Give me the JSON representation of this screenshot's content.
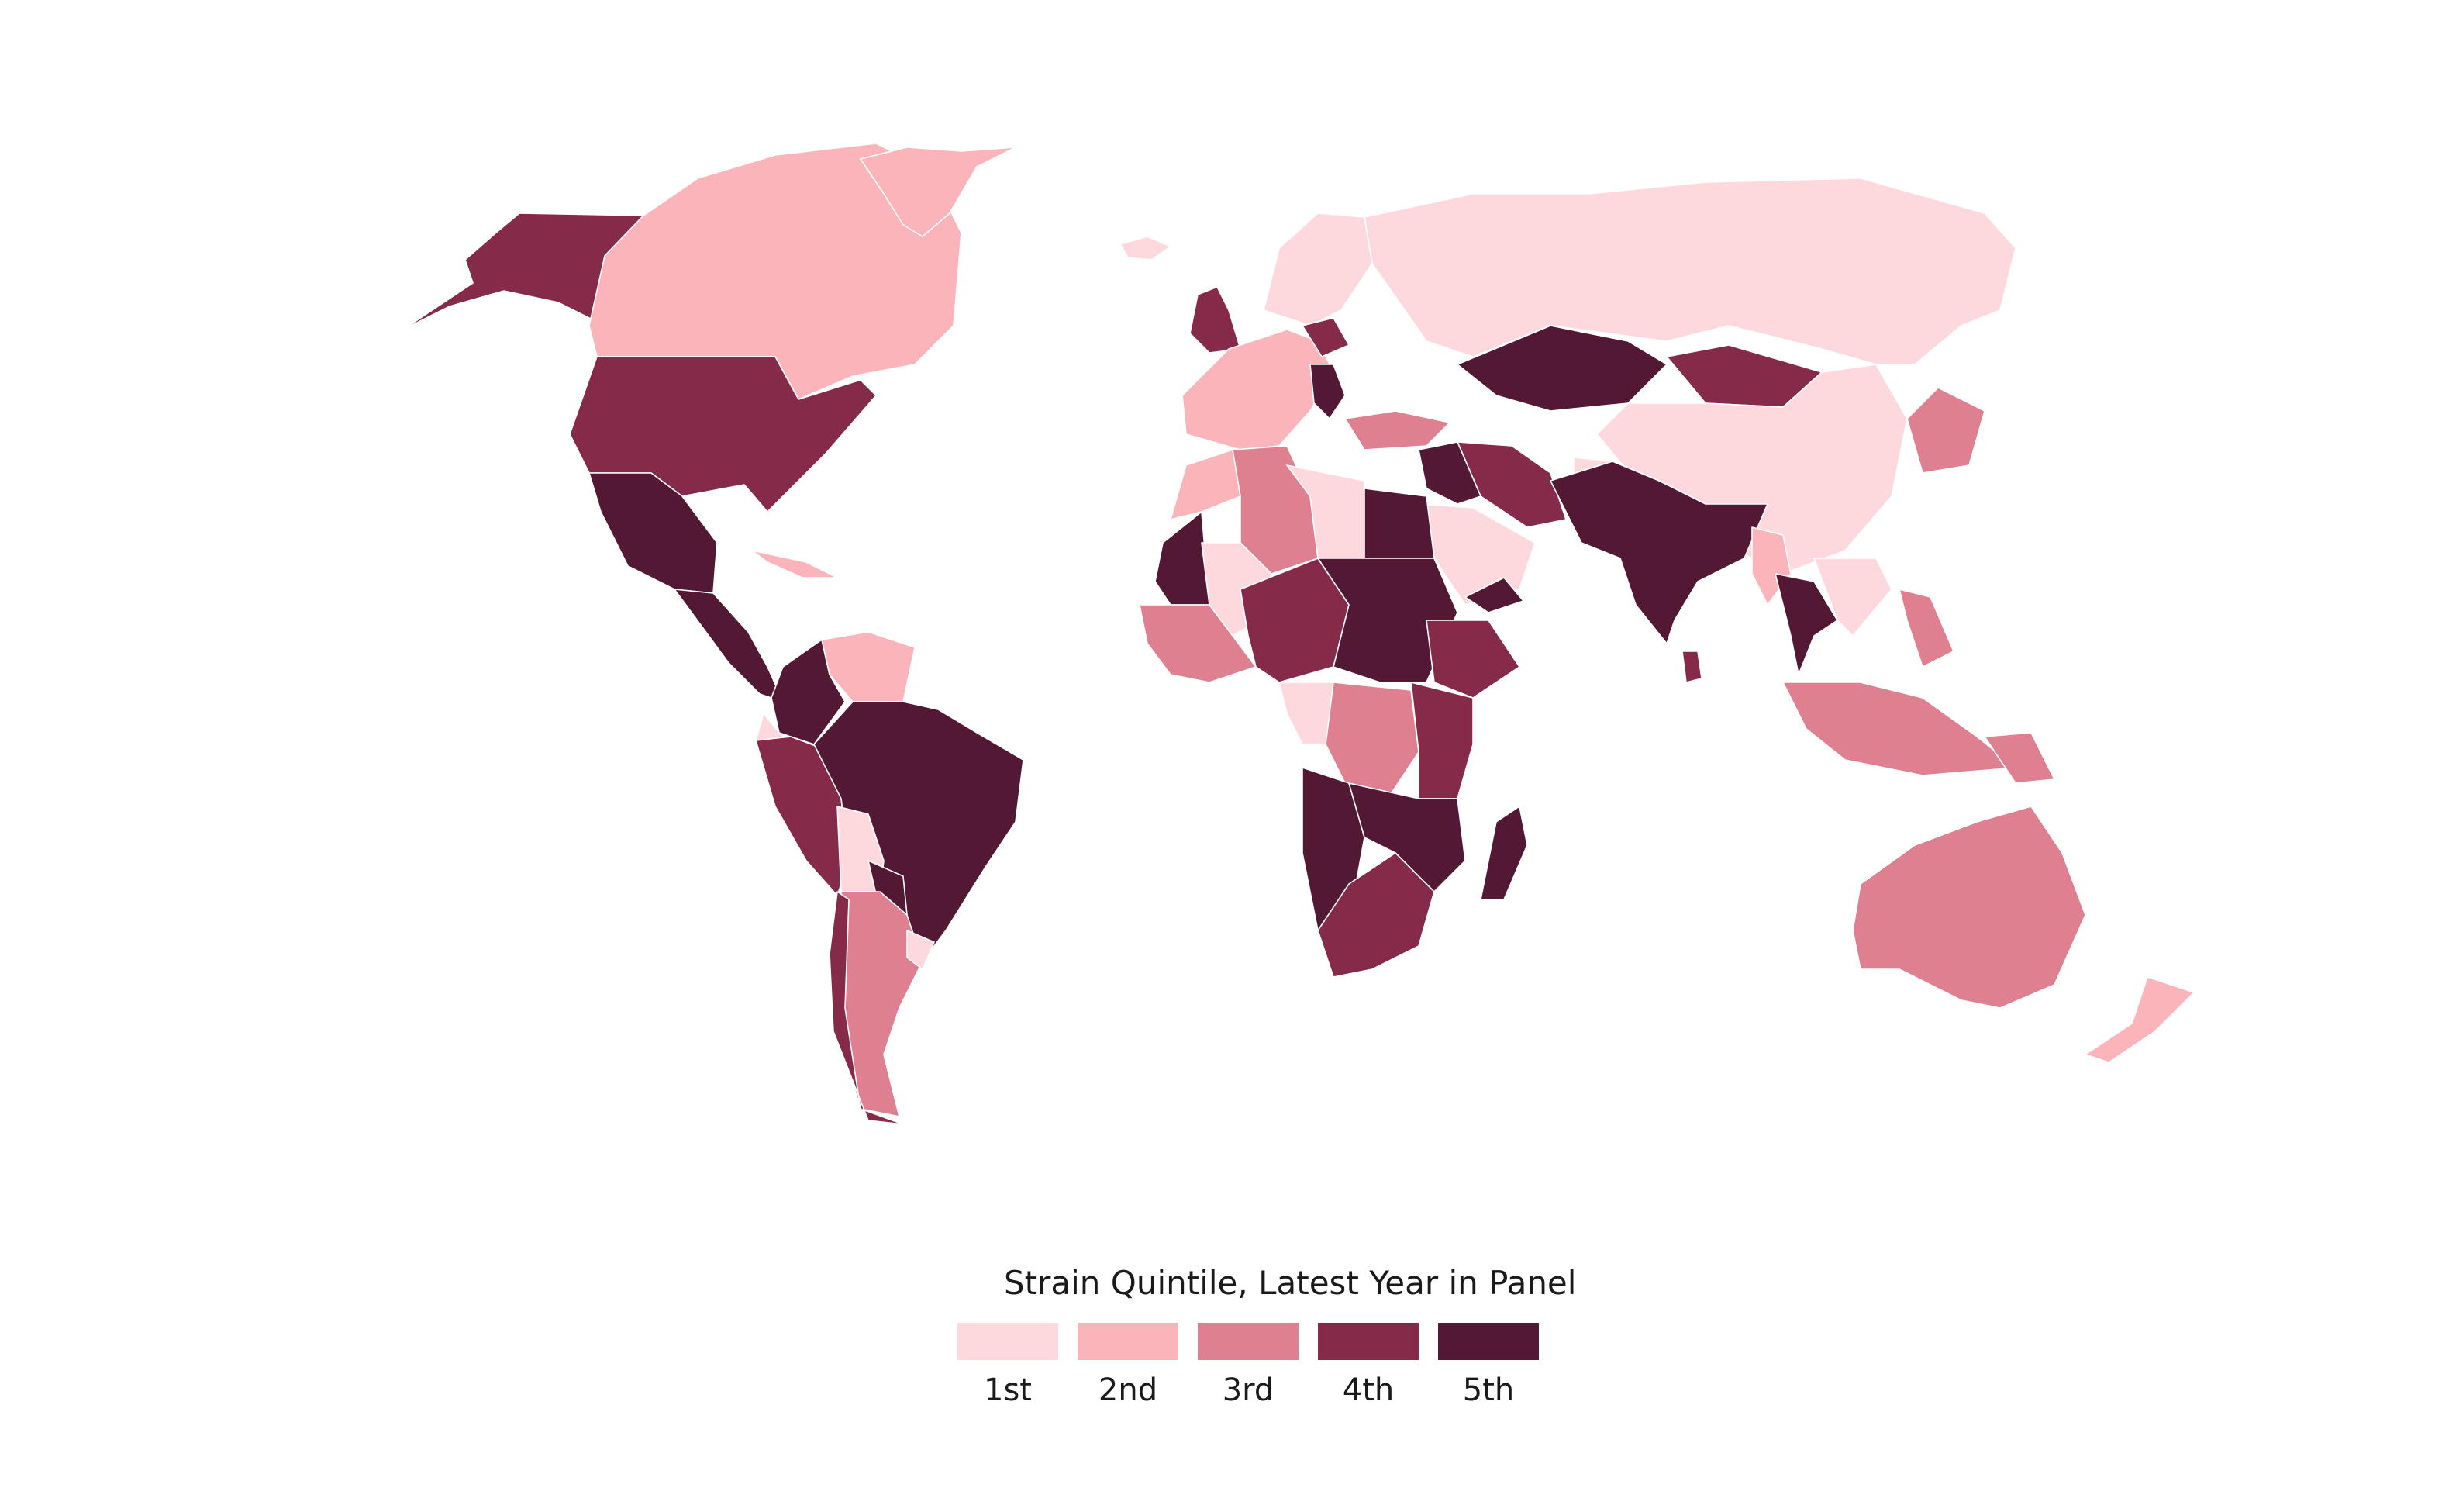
{
  "legend": {
    "title": "Strain Quintile, Latest Year in Panel",
    "items": [
      {
        "label": "1st",
        "color": "#fdd9dd"
      },
      {
        "label": "2nd",
        "color": "#fbb4b9"
      },
      {
        "label": "3rd",
        "color": "#de8090"
      },
      {
        "label": "4th",
        "color": "#862a4a"
      },
      {
        "label": "5th",
        "color": "#521834"
      }
    ]
  },
  "regions": [
    {
      "name": "alaska",
      "quintile": 4
    },
    {
      "name": "canada",
      "quintile": 2
    },
    {
      "name": "greenland",
      "quintile": 2
    },
    {
      "name": "united-states",
      "quintile": 4
    },
    {
      "name": "mexico",
      "quintile": 5
    },
    {
      "name": "central-america",
      "quintile": 5
    },
    {
      "name": "caribbean",
      "quintile": 2
    },
    {
      "name": "colombia",
      "quintile": 5
    },
    {
      "name": "venezuela",
      "quintile": 2
    },
    {
      "name": "ecuador",
      "quintile": 1
    },
    {
      "name": "peru",
      "quintile": 4
    },
    {
      "name": "brazil",
      "quintile": 5
    },
    {
      "name": "bolivia",
      "quintile": 1
    },
    {
      "name": "paraguay",
      "quintile": 5
    },
    {
      "name": "argentina",
      "quintile": 3
    },
    {
      "name": "chile",
      "quintile": 4
    },
    {
      "name": "uruguay",
      "quintile": 1
    },
    {
      "name": "iceland",
      "quintile": 1
    },
    {
      "name": "united-kingdom",
      "quintile": 4
    },
    {
      "name": "scandinavia",
      "quintile": 1
    },
    {
      "name": "western-europe",
      "quintile": 2
    },
    {
      "name": "poland",
      "quintile": 4
    },
    {
      "name": "balkans",
      "quintile": 5
    },
    {
      "name": "turkey",
      "quintile": 3
    },
    {
      "name": "russia",
      "quintile": 1
    },
    {
      "name": "kazakhstan",
      "quintile": 5
    },
    {
      "name": "mongolia",
      "quintile": 4
    },
    {
      "name": "china",
      "quintile": 1
    },
    {
      "name": "korea-japan",
      "quintile": 3
    },
    {
      "name": "iran",
      "quintile": 4
    },
    {
      "name": "middle-east",
      "quintile": 5
    },
    {
      "name": "arabia",
      "quintile": 1
    },
    {
      "name": "yemen",
      "quintile": 5
    },
    {
      "name": "afghanistan",
      "quintile": 1
    },
    {
      "name": "pakistan-india",
      "quintile": 5
    },
    {
      "name": "sri-lanka",
      "quintile": 4
    },
    {
      "name": "myanmar",
      "quintile": 2
    },
    {
      "name": "thailand",
      "quintile": 5
    },
    {
      "name": "southeast-asia",
      "quintile": 1
    },
    {
      "name": "indonesia",
      "quintile": 3
    },
    {
      "name": "philippines",
      "quintile": 3
    },
    {
      "name": "papua-new-guinea",
      "quintile": 3
    },
    {
      "name": "australia",
      "quintile": 3
    },
    {
      "name": "new-zealand",
      "quintile": 2
    },
    {
      "name": "morocco",
      "quintile": 2
    },
    {
      "name": "algeria",
      "quintile": 3
    },
    {
      "name": "libya",
      "quintile": 1
    },
    {
      "name": "egypt",
      "quintile": 5
    },
    {
      "name": "mauritania",
      "quintile": 5
    },
    {
      "name": "mali",
      "quintile": 1
    },
    {
      "name": "west-africa",
      "quintile": 3
    },
    {
      "name": "niger-nigeria",
      "quintile": 4
    },
    {
      "name": "chad-sudan",
      "quintile": 5
    },
    {
      "name": "ethiopia",
      "quintile": 4
    },
    {
      "name": "gabon-congo",
      "quintile": 1
    },
    {
      "name": "dr-congo",
      "quintile": 3
    },
    {
      "name": "east-africa",
      "quintile": 4
    },
    {
      "name": "angola",
      "quintile": 5
    },
    {
      "name": "zambia-mozambique",
      "quintile": 5
    },
    {
      "name": "southern-africa",
      "quintile": 4
    },
    {
      "name": "madagascar",
      "quintile": 5
    }
  ]
}
